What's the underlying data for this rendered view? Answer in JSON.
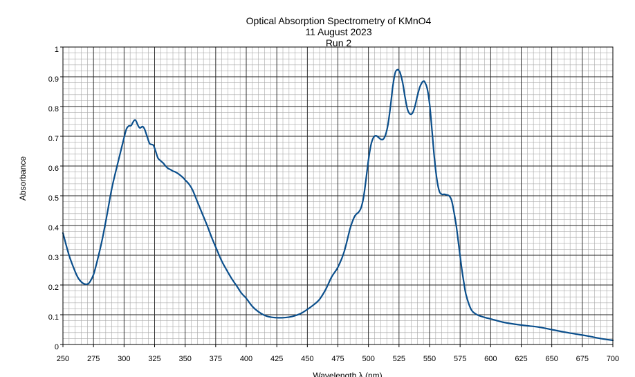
{
  "chart_data": {
    "type": "line",
    "title": [
      "Optical Absorption Spectrometry of KMnO4",
      "11 August 2023",
      "Run 2"
    ],
    "xlabel": "Wavelength λ (nm)",
    "ylabel": "Absorbance",
    "xlim": [
      250,
      700
    ],
    "ylim": [
      0,
      1
    ],
    "x_ticks": [
      250,
      275,
      300,
      325,
      350,
      375,
      400,
      425,
      450,
      475,
      500,
      525,
      550,
      575,
      600,
      625,
      650,
      675,
      700
    ],
    "y_ticks": [
      0,
      0.1,
      0.2,
      0.3,
      0.4,
      0.5,
      0.6,
      0.7,
      0.8,
      0.9,
      1
    ],
    "y_tick_labels": [
      "0",
      "0.1",
      "0.2",
      "0.3",
      "0.4",
      "0.5",
      "0.6",
      "0.7",
      "0.8",
      "0.9",
      "1"
    ],
    "x_minor_step": 5,
    "y_minor_step": 0.02,
    "grid": true,
    "series": [
      {
        "color": "#0b4f8c",
        "x": [
          250,
          255,
          260,
          263,
          266,
          268,
          270,
          272,
          275,
          278,
          282,
          286,
          290,
          294,
          297,
          300,
          302,
          304,
          305,
          306,
          307,
          308,
          309,
          310,
          311,
          312,
          313,
          314,
          315,
          316,
          317,
          318,
          319,
          320,
          321,
          322,
          323,
          324,
          325,
          326,
          327,
          328,
          330,
          332,
          334,
          336,
          338,
          340,
          342,
          345,
          348,
          350,
          353,
          356,
          360,
          364,
          368,
          372,
          376,
          380,
          384,
          388,
          392,
          396,
          400,
          405,
          410,
          415,
          420,
          425,
          430,
          435,
          440,
          445,
          450,
          455,
          460,
          465,
          470,
          475,
          480,
          485,
          488,
          490,
          492,
          494,
          496,
          498,
          500,
          502,
          504,
          506,
          508,
          510,
          512,
          514,
          516,
          518,
          520,
          522,
          524,
          525,
          526,
          528,
          530,
          532,
          534,
          536,
          538,
          540,
          542,
          544,
          545,
          546,
          548,
          550,
          552,
          554,
          556,
          558,
          560,
          562,
          564,
          566,
          568,
          570,
          572,
          574,
          576,
          578,
          580,
          584,
          588,
          592,
          596,
          600,
          610,
          620,
          630,
          640,
          650,
          660,
          670,
          680,
          690,
          700
        ],
        "y": [
          0.375,
          0.3,
          0.245,
          0.22,
          0.207,
          0.203,
          0.203,
          0.21,
          0.235,
          0.28,
          0.35,
          0.435,
          0.525,
          0.595,
          0.645,
          0.695,
          0.725,
          0.735,
          0.735,
          0.737,
          0.745,
          0.752,
          0.755,
          0.75,
          0.74,
          0.732,
          0.728,
          0.73,
          0.733,
          0.73,
          0.722,
          0.71,
          0.698,
          0.685,
          0.675,
          0.673,
          0.672,
          0.67,
          0.66,
          0.648,
          0.635,
          0.625,
          0.617,
          0.61,
          0.6,
          0.592,
          0.588,
          0.583,
          0.58,
          0.572,
          0.562,
          0.553,
          0.54,
          0.52,
          0.48,
          0.44,
          0.4,
          0.357,
          0.318,
          0.28,
          0.25,
          0.222,
          0.198,
          0.173,
          0.155,
          0.128,
          0.11,
          0.098,
          0.092,
          0.09,
          0.09,
          0.092,
          0.097,
          0.105,
          0.118,
          0.133,
          0.152,
          0.185,
          0.228,
          0.26,
          0.31,
          0.39,
          0.425,
          0.438,
          0.445,
          0.46,
          0.495,
          0.555,
          0.62,
          0.67,
          0.695,
          0.702,
          0.697,
          0.69,
          0.69,
          0.705,
          0.74,
          0.8,
          0.87,
          0.915,
          0.924,
          0.92,
          0.913,
          0.88,
          0.83,
          0.79,
          0.775,
          0.778,
          0.8,
          0.835,
          0.865,
          0.882,
          0.885,
          0.883,
          0.862,
          0.81,
          0.72,
          0.625,
          0.555,
          0.515,
          0.505,
          0.505,
          0.503,
          0.5,
          0.485,
          0.445,
          0.395,
          0.33,
          0.265,
          0.21,
          0.165,
          0.118,
          0.102,
          0.095,
          0.09,
          0.086,
          0.075,
          0.068,
          0.063,
          0.058,
          0.05,
          0.042,
          0.035,
          0.028,
          0.02,
          0.014
        ]
      }
    ]
  }
}
